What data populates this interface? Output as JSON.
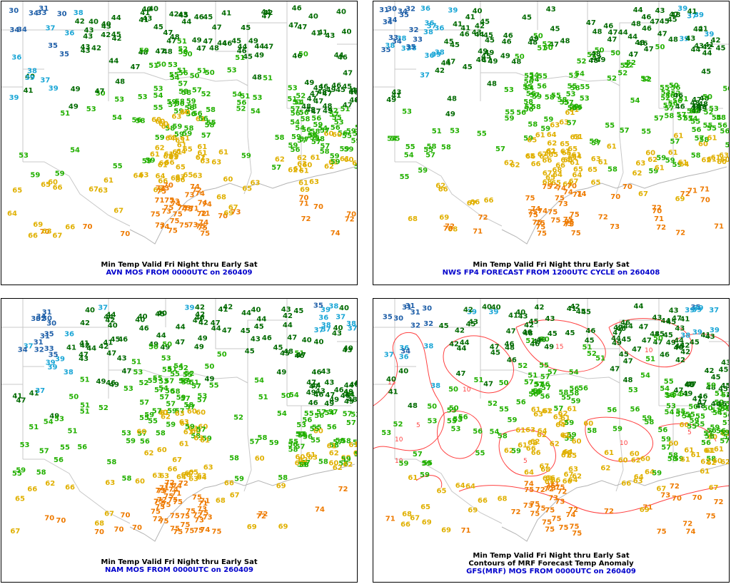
{
  "colors": {
    "lt40": "#1f5fa8",
    "cyan": "#1aa6d6",
    "c40s": "#006a00",
    "c50s": "#22b000",
    "c60s": "#e0b000",
    "c70s": "#ee7a00",
    "contour": "#ff4040"
  },
  "panels": [
    {
      "caption_line1": "Min Temp Valid Fri Night thru Early Sat",
      "caption_line2": "AVN MOS FROM 0000UTC on 260409",
      "contours": false,
      "seed": 11,
      "cold_bias": 0,
      "warm_bias": 0
    },
    {
      "caption_line1": "Min Temp Valid Fri Night thru Early Sat",
      "caption_line2": "NWS FP4 FORECAST FROM 1200UTC CYCLE on 260408",
      "contours": false,
      "seed": 29,
      "cold_bias": 1,
      "warm_bias": 1
    },
    {
      "caption_line1": "Min Temp Valid Fri Night thru Early Sat",
      "caption_line2": "NAM MOS FROM 0000UTC on 260409",
      "contours": false,
      "seed": 47,
      "cold_bias": -1,
      "warm_bias": 0
    },
    {
      "caption_line1": "Min Temp Valid Fri Night thru Early Sat",
      "caption_line1b": "Contours of MRF Forecast Temp Anomaly",
      "caption_line2": "GFS(MRF) MOS FROM 0000UTC on 260409",
      "contours": true,
      "seed": 83,
      "cold_bias": 0,
      "warm_bias": 1
    }
  ],
  "contour_labels": [
    "15",
    "10",
    "5",
    "10",
    "15",
    "10",
    "5",
    "10",
    "5",
    "10"
  ]
}
